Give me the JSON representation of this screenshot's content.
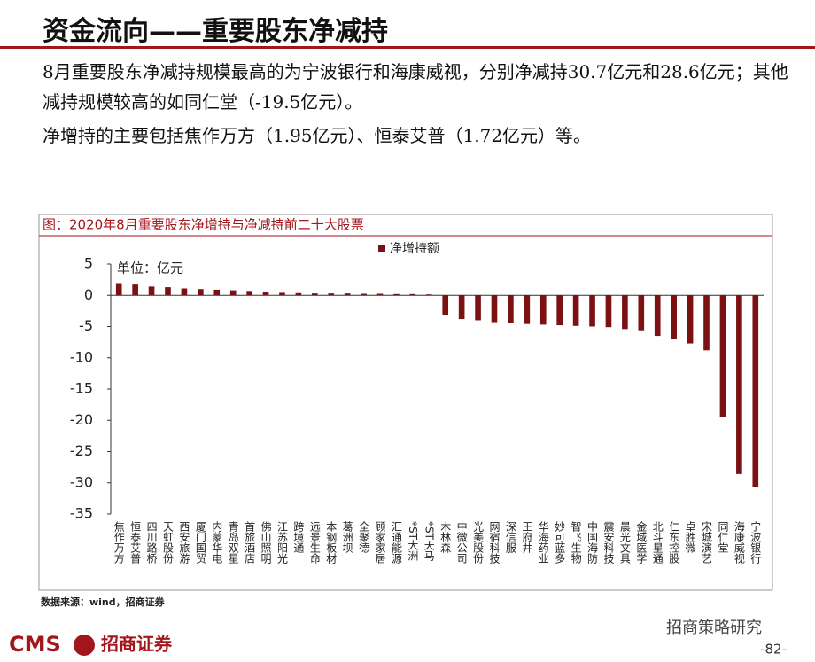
{
  "header": {
    "title": "资金流向——重要股东净减持"
  },
  "paragraphs": [
    "8月重要股东净减持规模最高的为宁波银行和海康威视，分别净减持30.7亿元和28.6亿元；其他减持规模较高的如同仁堂（-19.5亿元）。",
    "净增持的主要包括焦作万方（1.95亿元）、恒泰艾普（1.72亿元）等。"
  ],
  "chart_data": {
    "type": "bar",
    "title": "图：2020年8月重要股东净增持与净减持前二十大股票",
    "unit_label": "单位：亿元",
    "categories": [
      "焦作万方",
      "恒泰艾普",
      "四川路桥",
      "天虹股份",
      "西安旅游",
      "厦门国贸",
      "内蒙华电",
      "青岛双星",
      "首旅酒店",
      "佛山照明",
      "江苏阳光",
      "跨境通",
      "远景生命",
      "本钢板材",
      "葛洲坝",
      "全聚德",
      "顾家家居",
      "汇通能源",
      "*ST大洲",
      "*ST天马",
      "木林森",
      "中微公司",
      "光美股份",
      "网宿科技",
      "深信服",
      "王府井",
      "华海药业",
      "妙可蓝多",
      "智飞生物",
      "中国海防",
      "震安科技",
      "晨光文具",
      "金域医学",
      "北斗星通",
      "仁东控股",
      "卓胜微",
      "宋城演艺",
      "同仁堂",
      "海康威视",
      "宁波银行"
    ],
    "series": [
      {
        "name": "净增持额",
        "color": "#7b1113",
        "values": [
          1.95,
          1.72,
          1.4,
          1.3,
          1.1,
          1.0,
          0.9,
          0.8,
          0.7,
          0.5,
          0.4,
          0.35,
          0.3,
          0.3,
          0.3,
          0.25,
          0.25,
          0.2,
          0.2,
          0.15,
          -3.2,
          -3.8,
          -4.0,
          -4.3,
          -4.5,
          -4.6,
          -4.7,
          -4.8,
          -4.9,
          -5.0,
          -5.1,
          -5.4,
          -5.6,
          -6.5,
          -7.0,
          -7.7,
          -8.8,
          -19.5,
          -28.6,
          -30.7
        ]
      }
    ],
    "ylim": [
      -35,
      5
    ],
    "yticks": [
      5,
      0,
      -5,
      -10,
      -15,
      -20,
      -25,
      -30,
      -35
    ],
    "legend": "top"
  },
  "source": "数据来源：wind，招商证券",
  "footer": {
    "logo": "CMS",
    "company": "招商证券",
    "account": "招商策略研究",
    "page": "-82-"
  }
}
